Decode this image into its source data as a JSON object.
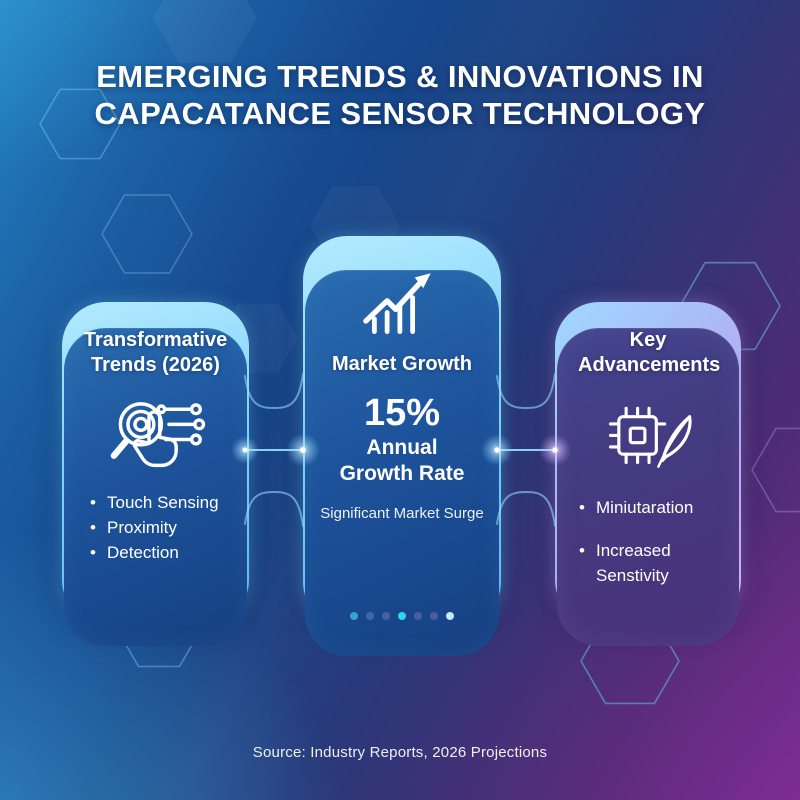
{
  "title": {
    "line1": "EMERGING TRENDS & INNOVATIONS IN",
    "line2": "CAPACATANCE SENSOR TECHNOLOGY"
  },
  "cards": {
    "left": {
      "heading": "Transformative Trends (2026)",
      "icon": "touch-sensor-icon",
      "bullets": [
        "Touch Sensing",
        "Proximity",
        "Detection"
      ]
    },
    "center": {
      "heading": "Market Growth",
      "icon": "growth-chart-icon",
      "stat_value": "15%",
      "stat_label": "Annual Growth Rate",
      "caption": "Significant Market Surge",
      "dot_colors": [
        "#39a2c9",
        "#3e68a8",
        "#49609c",
        "#31d7e8",
        "#44619e",
        "#4b5e9a",
        "#c2ebf6"
      ]
    },
    "right": {
      "heading": "Key Advancements",
      "icon": "chip-feather-icon",
      "bullets": [
        "Miniutaration",
        "Increased Senstivity"
      ]
    }
  },
  "footer": {
    "source": "Source: Industry Reports, 2026 Projections"
  },
  "colors": {
    "accent_cyan": "#8fd9ff",
    "accent_purple": "#c9a6f6",
    "spark": "#ffffff",
    "background_blue": "#174b91",
    "background_purple": "#5e2b7c"
  }
}
